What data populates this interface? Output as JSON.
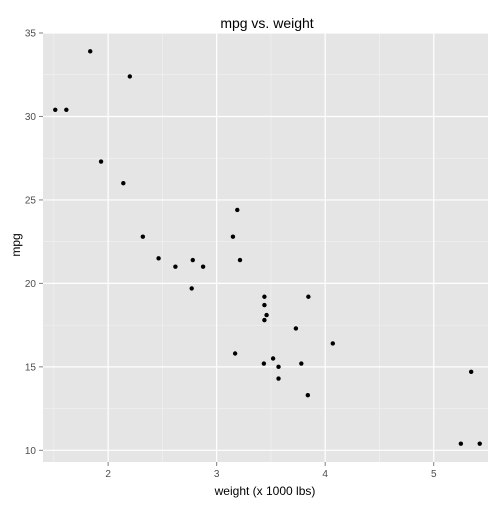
{
  "colors": {
    "panel_background": "#e5e5e5",
    "grid_major": "#ffffff",
    "grid_minor": "#f2f2f2",
    "point": "#000000",
    "tick_text": "#4d4d4d",
    "text": "#000000"
  },
  "chart_data": {
    "type": "scatter",
    "title": "mpg vs. weight",
    "xlabel": "weight (x 1000 lbs)",
    "ylabel": "mpg",
    "xlim": [
      1.4,
      5.5
    ],
    "ylim": [
      9.3,
      35.0
    ],
    "x_ticks": [
      2,
      3,
      4,
      5
    ],
    "y_ticks": [
      10,
      15,
      20,
      25,
      30,
      35
    ],
    "x_minor_ticks": [
      1.5,
      2.5,
      3.5,
      4.5
    ],
    "y_minor_ticks": [
      12.5,
      17.5,
      22.5,
      27.5,
      32.5
    ],
    "grid": true,
    "points": [
      {
        "x": 2.62,
        "y": 21.0
      },
      {
        "x": 2.875,
        "y": 21.0
      },
      {
        "x": 2.32,
        "y": 22.8
      },
      {
        "x": 3.215,
        "y": 21.4
      },
      {
        "x": 3.44,
        "y": 18.7
      },
      {
        "x": 3.46,
        "y": 18.1
      },
      {
        "x": 3.57,
        "y": 14.3
      },
      {
        "x": 3.19,
        "y": 24.4
      },
      {
        "x": 3.15,
        "y": 22.8
      },
      {
        "x": 3.44,
        "y": 19.2
      },
      {
        "x": 3.44,
        "y": 17.8
      },
      {
        "x": 4.07,
        "y": 16.4
      },
      {
        "x": 3.73,
        "y": 17.3
      },
      {
        "x": 3.78,
        "y": 15.2
      },
      {
        "x": 5.25,
        "y": 10.4
      },
      {
        "x": 5.424,
        "y": 10.4
      },
      {
        "x": 5.345,
        "y": 14.7
      },
      {
        "x": 2.2,
        "y": 32.4
      },
      {
        "x": 1.615,
        "y": 30.4
      },
      {
        "x": 1.835,
        "y": 33.9
      },
      {
        "x": 2.465,
        "y": 21.5
      },
      {
        "x": 3.52,
        "y": 15.5
      },
      {
        "x": 3.435,
        "y": 15.2
      },
      {
        "x": 3.84,
        "y": 13.3
      },
      {
        "x": 3.845,
        "y": 19.2
      },
      {
        "x": 1.935,
        "y": 27.3
      },
      {
        "x": 2.14,
        "y": 26.0
      },
      {
        "x": 1.513,
        "y": 30.4
      },
      {
        "x": 3.17,
        "y": 15.8
      },
      {
        "x": 2.77,
        "y": 19.7
      },
      {
        "x": 3.57,
        "y": 15.0
      },
      {
        "x": 2.78,
        "y": 21.4
      }
    ]
  }
}
